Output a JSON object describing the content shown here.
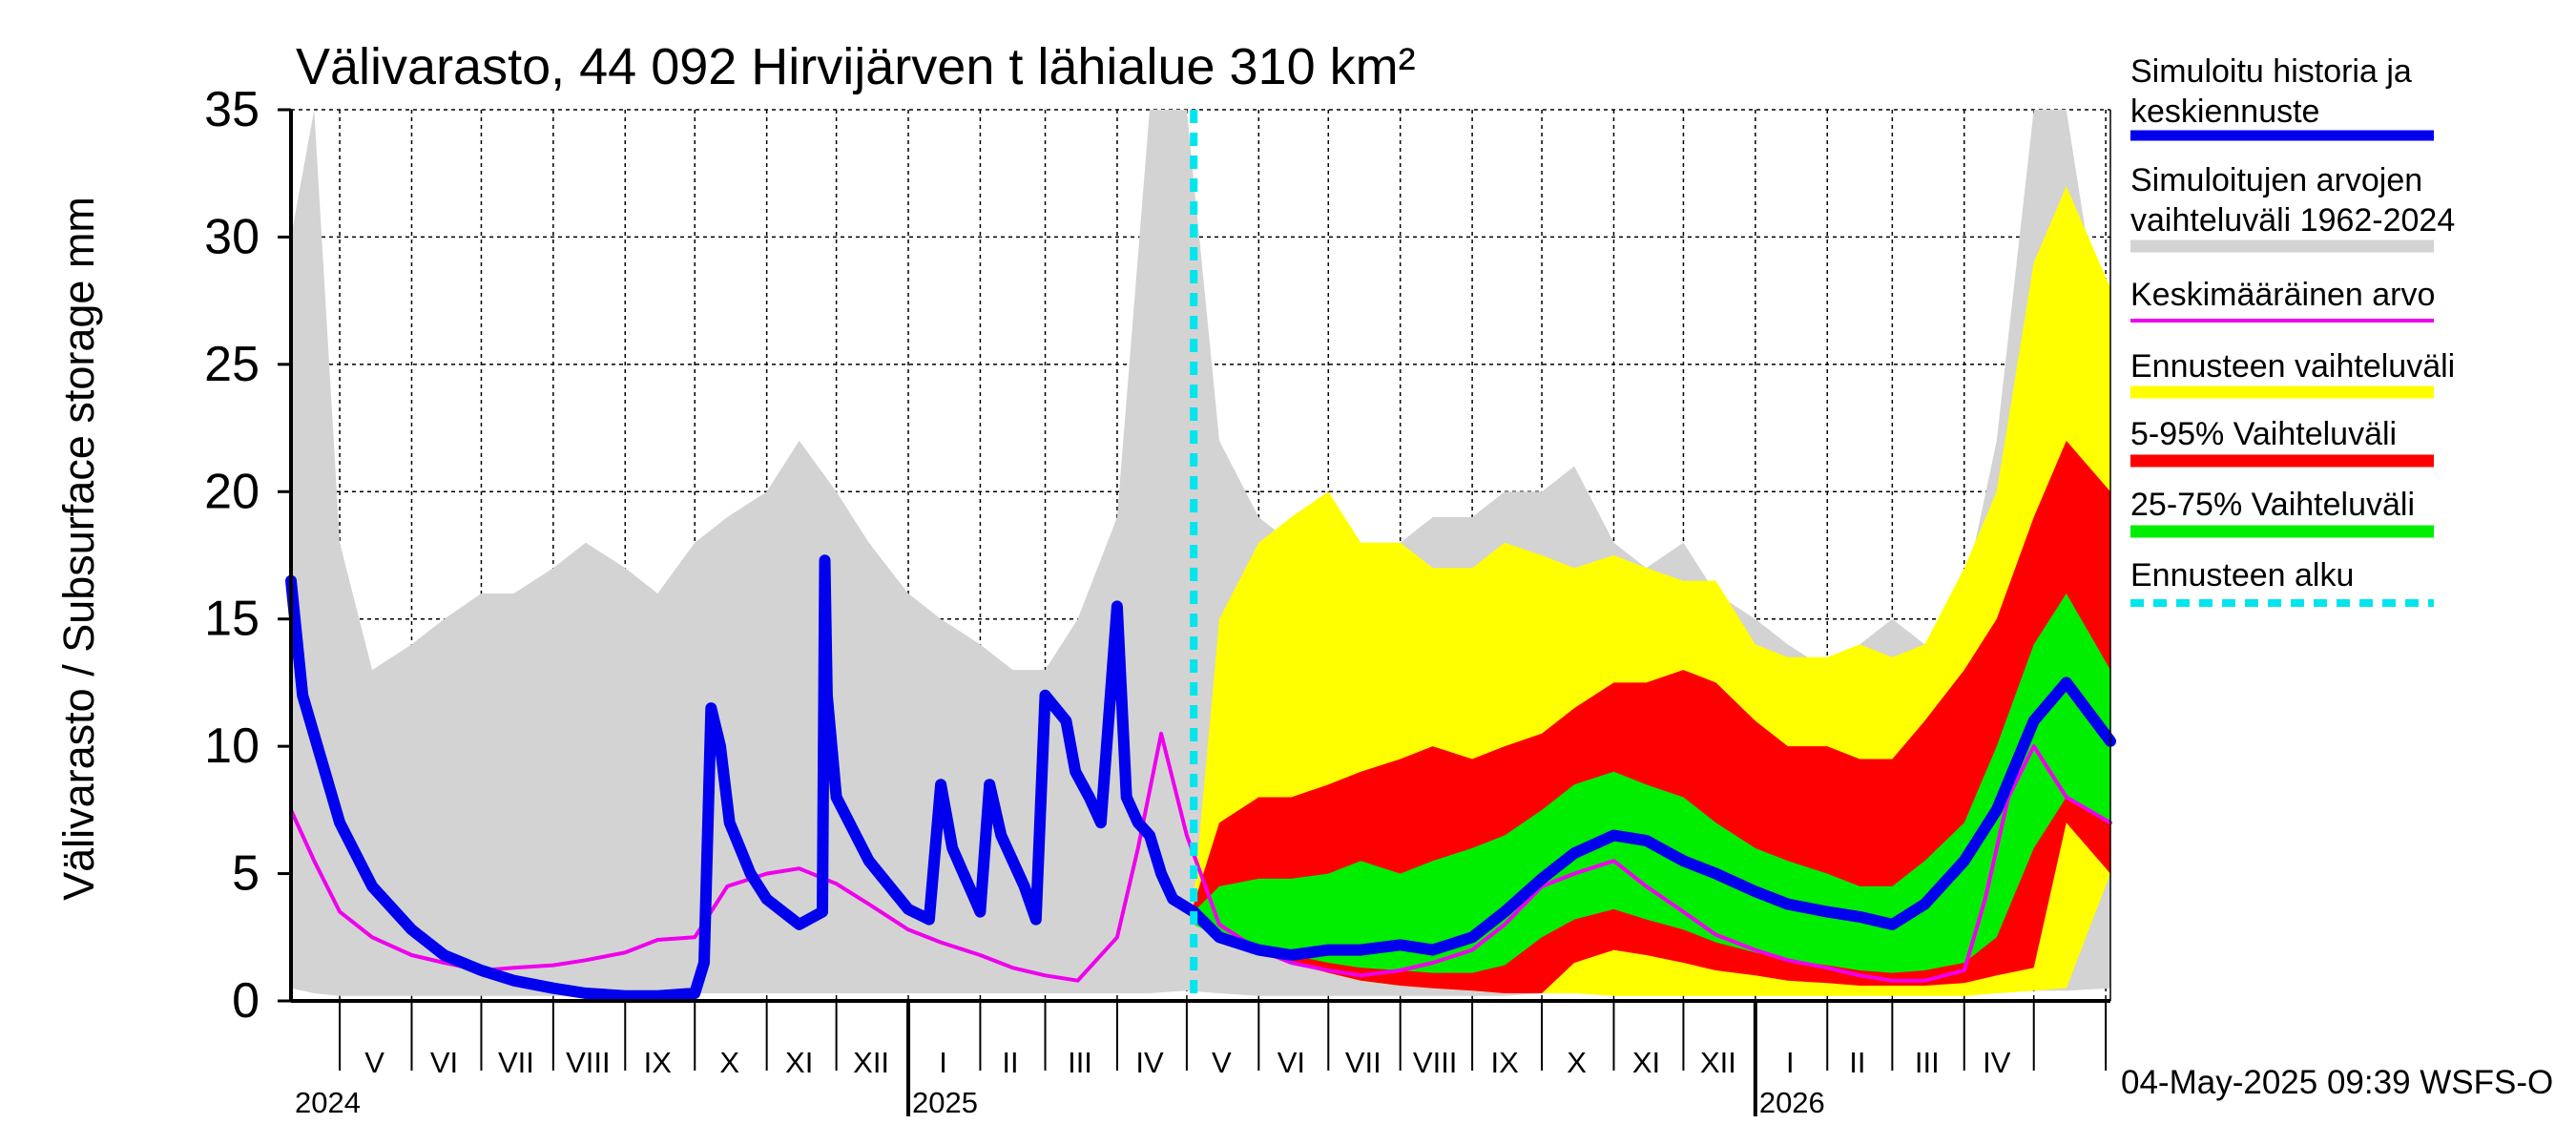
{
  "chart_data": {
    "type": "area",
    "title": "Välivarasto, 44 092 Hirvijärven t lähialue 310 km²",
    "ylabel": "Välivarasto / Subsurface storage  mm",
    "ylim": [
      0,
      35
    ],
    "yticks": [
      "0",
      "5",
      "10",
      "15",
      "20",
      "25",
      "30",
      "35"
    ],
    "x_start": "2024-04-10",
    "x_end": "2026-06-03",
    "forecast_start": "2025-05-04",
    "grid": true,
    "legend_position": "right",
    "month_labels": [
      {
        "label": "V",
        "date": "2024-05-16"
      },
      {
        "label": "VI",
        "date": "2024-06-15"
      },
      {
        "label": "VII",
        "date": "2024-07-16"
      },
      {
        "label": "VIII",
        "date": "2024-08-16"
      },
      {
        "label": "IX",
        "date": "2024-09-15"
      },
      {
        "label": "X",
        "date": "2024-10-16"
      },
      {
        "label": "XI",
        "date": "2024-11-15"
      },
      {
        "label": "XII",
        "date": "2024-12-16"
      },
      {
        "label": "I",
        "date": "2025-01-16"
      },
      {
        "label": "II",
        "date": "2025-02-14"
      },
      {
        "label": "III",
        "date": "2025-03-16"
      },
      {
        "label": "IV",
        "date": "2025-04-15"
      },
      {
        "label": "V",
        "date": "2025-05-16"
      },
      {
        "label": "VI",
        "date": "2025-06-15"
      },
      {
        "label": "VII",
        "date": "2025-07-16"
      },
      {
        "label": "VIII",
        "date": "2025-08-16"
      },
      {
        "label": "IX",
        "date": "2025-09-15"
      },
      {
        "label": "X",
        "date": "2025-10-16"
      },
      {
        "label": "XI",
        "date": "2025-11-15"
      },
      {
        "label": "XII",
        "date": "2025-12-16"
      },
      {
        "label": "I",
        "date": "2026-01-16"
      },
      {
        "label": "II",
        "date": "2026-02-14"
      },
      {
        "label": "III",
        "date": "2026-03-16"
      },
      {
        "label": "IV",
        "date": "2026-04-15"
      }
    ],
    "year_labels": [
      {
        "label": "2024",
        "date": "2024-04-10"
      },
      {
        "label": "2025",
        "date": "2025-01-01"
      },
      {
        "label": "2026",
        "date": "2026-01-01"
      }
    ],
    "legend": [
      {
        "label": "Simuloitu historia ja keskiennuste",
        "color": "#0000ee"
      },
      {
        "label": "Simuloitujen arvojen vaihteluväli 1962-2024",
        "color": "#d3d3d3"
      },
      {
        "label": "Keskimääräinen arvo",
        "color": "#ee00ee"
      },
      {
        "label": "Ennusteen vaihteluväli",
        "color": "#ffff00"
      },
      {
        "label": "5-95% Vaihteluväli",
        "color": "#ff0000"
      },
      {
        "label": "25-75% Vaihteluväli",
        "color": "#00ee00"
      },
      {
        "label": "Ennusteen alku",
        "color": "#00e5ee"
      }
    ],
    "series": [
      {
        "name": "Simuloitujen arvojen vaihteluväli 1962-2024",
        "color": "#d3d3d3",
        "x": [
          "2024-04-10",
          "2024-04-20",
          "2024-05-01",
          "2024-05-15",
          "2024-06-01",
          "2024-06-15",
          "2024-07-01",
          "2024-07-15",
          "2024-08-01",
          "2024-08-15",
          "2024-09-01",
          "2024-09-15",
          "2024-10-01",
          "2024-10-15",
          "2024-11-01",
          "2024-11-15",
          "2024-12-01",
          "2024-12-15",
          "2025-01-01",
          "2025-01-15",
          "2025-02-01",
          "2025-02-15",
          "2025-03-01",
          "2025-03-15",
          "2025-04-01",
          "2025-04-15",
          "2025-05-01",
          "2025-05-15",
          "2025-06-01",
          "2025-06-15",
          "2025-07-01",
          "2025-07-15",
          "2025-08-01",
          "2025-08-15",
          "2025-09-01",
          "2025-09-15",
          "2025-10-01",
          "2025-10-15",
          "2025-11-01",
          "2025-11-15",
          "2025-12-01",
          "2025-12-15",
          "2026-01-01",
          "2026-01-15",
          "2026-02-01",
          "2026-02-15",
          "2026-03-01",
          "2026-03-15",
          "2026-04-01",
          "2026-04-15",
          "2026-05-01",
          "2026-05-15",
          "2026-06-03"
        ],
        "low": [
          0.5,
          0.3,
          0.2,
          0.2,
          0.2,
          0.2,
          0.2,
          0.2,
          0.2,
          0.2,
          0.2,
          0.2,
          0.3,
          0.3,
          0.3,
          0.3,
          0.3,
          0.3,
          0.3,
          0.3,
          0.3,
          0.3,
          0.3,
          0.3,
          0.3,
          0.3,
          0.4,
          0.3,
          0.2,
          0.2,
          0.2,
          0.2,
          0.2,
          0.2,
          0.2,
          0.2,
          0.3,
          0.3,
          0.3,
          0.3,
          0.3,
          0.3,
          0.3,
          0.3,
          0.3,
          0.3,
          0.3,
          0.3,
          0.3,
          0.3,
          0.4,
          0.4,
          0.5
        ],
        "high": [
          30,
          35,
          18,
          13,
          14,
          15,
          16,
          16,
          17,
          18,
          17,
          16,
          18,
          19,
          20,
          22,
          20,
          18,
          16,
          15,
          14,
          13,
          13,
          15,
          19,
          35,
          35,
          22,
          19,
          18,
          18,
          17,
          18,
          19,
          19,
          20,
          20,
          21,
          18,
          17,
          18,
          16,
          15,
          14,
          13,
          14,
          15,
          14,
          16,
          22,
          35,
          35,
          24
        ]
      },
      {
        "name": "Ennusteen vaihteluväli",
        "color": "#ffff00",
        "x": [
          "2025-05-04",
          "2025-05-15",
          "2025-06-01",
          "2025-06-15",
          "2025-07-01",
          "2025-07-15",
          "2025-08-01",
          "2025-08-15",
          "2025-09-01",
          "2025-09-15",
          "2025-10-01",
          "2025-10-15",
          "2025-11-01",
          "2025-11-15",
          "2025-12-01",
          "2025-12-15",
          "2026-01-01",
          "2026-01-15",
          "2026-02-01",
          "2026-02-15",
          "2026-03-01",
          "2026-03-15",
          "2026-04-01",
          "2026-04-15",
          "2026-05-01",
          "2026-05-15",
          "2026-06-03"
        ],
        "low": [
          3.5,
          2.8,
          2.0,
          1.5,
          1.1,
          0.8,
          0.6,
          0.5,
          0.4,
          0.3,
          0.3,
          0.3,
          0.2,
          0.2,
          0.2,
          0.2,
          0.2,
          0.2,
          0.2,
          0.2,
          0.2,
          0.2,
          0.2,
          0.3,
          0.4,
          0.5,
          5.0
        ],
        "high": [
          4.0,
          15.0,
          18.0,
          19.0,
          20.0,
          18.0,
          18.0,
          17.0,
          17.0,
          18.0,
          17.5,
          17.0,
          17.5,
          17.0,
          16.5,
          16.5,
          14.0,
          13.5,
          13.5,
          14.0,
          13.5,
          14.0,
          17.0,
          20.0,
          29.0,
          32.0,
          28.0
        ]
      },
      {
        "name": "5-95% Vaihteluväli",
        "color": "#ff0000",
        "x": [
          "2025-05-04",
          "2025-05-15",
          "2025-06-01",
          "2025-06-15",
          "2025-07-01",
          "2025-07-15",
          "2025-08-01",
          "2025-08-15",
          "2025-09-01",
          "2025-09-15",
          "2025-10-01",
          "2025-10-15",
          "2025-11-01",
          "2025-11-15",
          "2025-12-01",
          "2025-12-15",
          "2026-01-01",
          "2026-01-15",
          "2026-02-01",
          "2026-02-15",
          "2026-03-01",
          "2026-03-15",
          "2026-04-01",
          "2026-04-15",
          "2026-05-01",
          "2026-05-15",
          "2026-06-03"
        ],
        "low": [
          3.4,
          2.7,
          2.0,
          1.5,
          1.1,
          0.8,
          0.6,
          0.5,
          0.4,
          0.3,
          0.3,
          1.5,
          2.0,
          1.8,
          1.5,
          1.2,
          1.0,
          0.8,
          0.7,
          0.6,
          0.6,
          0.6,
          0.7,
          1.0,
          1.3,
          7.0,
          5.0
        ],
        "high": [
          3.8,
          7.0,
          8.0,
          8.0,
          8.5,
          9.0,
          9.5,
          10.0,
          9.5,
          10.0,
          10.5,
          11.5,
          12.5,
          12.5,
          13.0,
          12.5,
          11.0,
          10.0,
          10.0,
          9.5,
          9.5,
          11.0,
          13.0,
          15.0,
          19.0,
          22.0,
          20.0
        ]
      },
      {
        "name": "25-75% Vaihteluväli",
        "color": "#00ee00",
        "x": [
          "2025-05-04",
          "2025-05-15",
          "2025-06-01",
          "2025-06-15",
          "2025-07-01",
          "2025-07-15",
          "2025-08-01",
          "2025-08-15",
          "2025-09-01",
          "2025-09-15",
          "2025-10-01",
          "2025-10-15",
          "2025-11-01",
          "2025-11-15",
          "2025-12-01",
          "2025-12-15",
          "2026-01-01",
          "2026-01-15",
          "2026-02-01",
          "2026-02-15",
          "2026-03-01",
          "2026-03-15",
          "2026-04-01",
          "2026-04-15",
          "2026-05-01",
          "2026-05-15",
          "2026-06-03"
        ],
        "low": [
          3.0,
          2.5,
          2.2,
          1.8,
          1.5,
          1.3,
          1.2,
          1.1,
          1.1,
          1.4,
          2.5,
          3.2,
          3.6,
          3.2,
          2.8,
          2.3,
          1.9,
          1.6,
          1.4,
          1.2,
          1.1,
          1.2,
          1.5,
          2.5,
          6.0,
          8.0,
          7.0
        ],
        "high": [
          3.5,
          4.5,
          4.8,
          4.8,
          5.0,
          5.5,
          5.0,
          5.5,
          6.0,
          6.5,
          7.5,
          8.5,
          9.0,
          8.5,
          8.0,
          7.0,
          6.0,
          5.5,
          5.0,
          4.5,
          4.5,
          5.5,
          7.0,
          10.0,
          14.0,
          16.0,
          13.0
        ]
      },
      {
        "name": "Keskimääräinen arvo",
        "color": "#ee00ee",
        "x": [
          "2024-04-10",
          "2024-04-20",
          "2024-05-01",
          "2024-05-15",
          "2024-06-01",
          "2024-06-15",
          "2024-07-01",
          "2024-07-15",
          "2024-08-01",
          "2024-08-15",
          "2024-09-01",
          "2024-09-15",
          "2024-10-01",
          "2024-10-15",
          "2024-11-01",
          "2024-11-15",
          "2024-12-01",
          "2024-12-15",
          "2025-01-01",
          "2025-01-15",
          "2025-02-01",
          "2025-02-15",
          "2025-03-01",
          "2025-03-15",
          "2025-04-01",
          "2025-04-10",
          "2025-04-20",
          "2025-05-01",
          "2025-05-15",
          "2025-06-01",
          "2025-06-15",
          "2025-07-01",
          "2025-07-15",
          "2025-08-01",
          "2025-08-15",
          "2025-09-01",
          "2025-09-15",
          "2025-10-01",
          "2025-10-15",
          "2025-11-01",
          "2025-11-15",
          "2025-12-01",
          "2025-12-15",
          "2026-01-01",
          "2026-01-15",
          "2026-02-01",
          "2026-02-15",
          "2026-03-01",
          "2026-03-15",
          "2026-04-01",
          "2026-04-10",
          "2026-04-20",
          "2026-05-01",
          "2026-05-15",
          "2026-06-03"
        ],
        "values": [
          7.5,
          5.5,
          3.5,
          2.5,
          1.8,
          1.5,
          1.2,
          1.3,
          1.4,
          1.6,
          1.9,
          2.4,
          2.5,
          4.5,
          5.0,
          5.2,
          4.6,
          3.8,
          2.8,
          2.3,
          1.8,
          1.3,
          1.0,
          0.8,
          2.5,
          6.0,
          10.5,
          6.5,
          3.0,
          2.0,
          1.5,
          1.2,
          1.0,
          1.2,
          1.5,
          2.0,
          3.0,
          4.5,
          5.0,
          5.5,
          4.5,
          3.5,
          2.6,
          2.0,
          1.6,
          1.3,
          1.0,
          0.8,
          0.8,
          1.2,
          4.0,
          8.0,
          10.0,
          8.0,
          7.0
        ]
      },
      {
        "name": "Simuloitu historia ja keskiennuste",
        "color": "#0000ee",
        "x": [
          "2024-04-10",
          "2024-04-15",
          "2024-05-01",
          "2024-05-15",
          "2024-06-01",
          "2024-06-15",
          "2024-07-01",
          "2024-07-15",
          "2024-08-01",
          "2024-08-15",
          "2024-09-01",
          "2024-09-15",
          "2024-10-01",
          "2024-10-05",
          "2024-10-08",
          "2024-10-12",
          "2024-10-16",
          "2024-10-25",
          "2024-11-01",
          "2024-11-15",
          "2024-11-25",
          "2024-11-26",
          "2024-11-27",
          "2024-12-01",
          "2024-12-15",
          "2025-01-01",
          "2025-01-10",
          "2025-01-15",
          "2025-01-18",
          "2025-01-20",
          "2025-02-01",
          "2025-02-05",
          "2025-02-10",
          "2025-02-20",
          "2025-02-25",
          "2025-03-01",
          "2025-03-10",
          "2025-03-14",
          "2025-03-20",
          "2025-03-25",
          "2025-04-01",
          "2025-04-05",
          "2025-04-10",
          "2025-04-15",
          "2025-04-20",
          "2025-04-25",
          "2025-05-04",
          "2025-05-15",
          "2025-06-01",
          "2025-06-15",
          "2025-07-01",
          "2025-07-15",
          "2025-08-01",
          "2025-08-15",
          "2025-09-01",
          "2025-09-15",
          "2025-10-01",
          "2025-10-15",
          "2025-11-01",
          "2025-11-15",
          "2025-12-01",
          "2025-12-15",
          "2026-01-01",
          "2026-01-15",
          "2026-02-01",
          "2026-02-15",
          "2026-03-01",
          "2026-03-15",
          "2026-04-01",
          "2026-04-15",
          "2026-05-01",
          "2026-05-15",
          "2026-06-03"
        ],
        "values": [
          16.5,
          12.0,
          7.0,
          4.5,
          2.8,
          1.8,
          1.2,
          0.8,
          0.5,
          0.3,
          0.2,
          0.2,
          0.3,
          1.5,
          11.5,
          10.0,
          7.0,
          5.0,
          4.0,
          3.0,
          3.5,
          17.3,
          12.0,
          8.0,
          5.5,
          3.6,
          3.2,
          8.5,
          7.0,
          6.0,
          3.5,
          8.5,
          6.5,
          4.5,
          3.2,
          12.0,
          11.0,
          9.0,
          8.0,
          7.0,
          15.5,
          8.0,
          7.0,
          6.5,
          5.0,
          4.0,
          3.5,
          2.5,
          2.0,
          1.8,
          2.0,
          2.0,
          2.2,
          2.0,
          2.5,
          3.5,
          4.8,
          5.8,
          6.5,
          6.3,
          5.5,
          5.0,
          4.3,
          3.8,
          3.5,
          3.3,
          3.0,
          3.8,
          5.5,
          7.5,
          11.0,
          12.5,
          10.2
        ]
      }
    ]
  },
  "timestamp": "04-May-2025 09:39 WSFS-O"
}
